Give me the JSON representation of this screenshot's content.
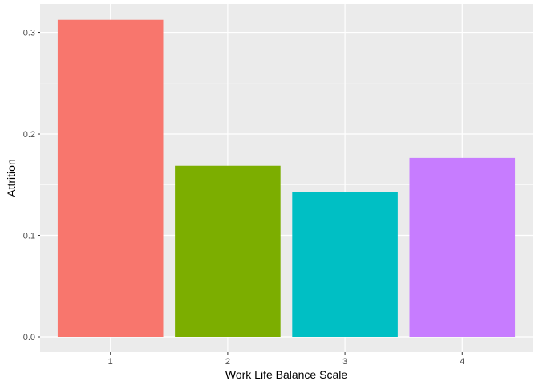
{
  "chart_data": {
    "type": "bar",
    "title": "",
    "xlabel": "Work Life Balance Scale",
    "ylabel": "Attrition",
    "categories": [
      "1",
      "2",
      "3",
      "4"
    ],
    "values": [
      0.3125,
      0.1686,
      0.1425,
      0.1764
    ],
    "ylim": [
      0,
      0.3281
    ],
    "yticks": [
      0.0,
      0.1,
      0.2,
      0.3
    ],
    "ytick_labels": [
      "0.0",
      "0.1",
      "0.2",
      "0.3"
    ],
    "colors": [
      "#F8766D",
      "#7CAE00",
      "#00BFC4",
      "#C77CFF"
    ],
    "grid": true,
    "legend": "none",
    "panel_background": "#EBEBEB",
    "gridline_color": "#FFFFFF"
  }
}
